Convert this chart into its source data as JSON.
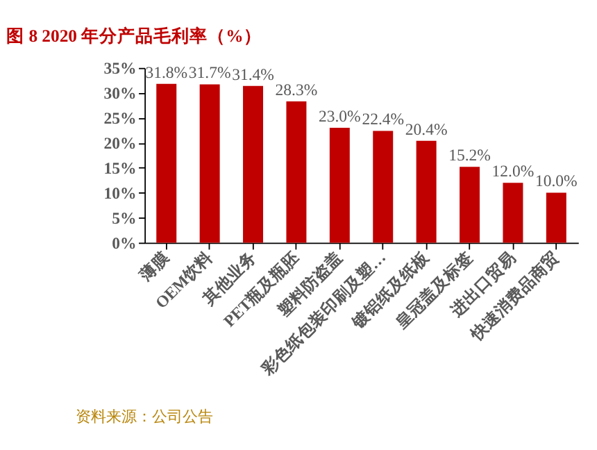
{
  "chart_data": {
    "type": "bar",
    "title": "图 8 2020 年分产品毛利率（%）",
    "categories": [
      "薄膜",
      "OEM饮料",
      "其他业务",
      "PET瓶及瓶胚",
      "塑料防盗盖",
      "彩色纸包装印刷及塑…",
      "镀铝纸及纸板",
      "皇冠盖及标签",
      "进出口贸易",
      "快速消费品商贸"
    ],
    "series": [
      {
        "color": "#c00000",
        "values": [
          31.8,
          31.7,
          31.4,
          28.3,
          23.0,
          22.4,
          20.4,
          15.2,
          12.0,
          10.0
        ],
        "value_labels": [
          "31.8%",
          "31.7%",
          "31.4%",
          "28.3%",
          "23.0%",
          "22.4%",
          "20.4%",
          "15.2%",
          "12.0%",
          "10.0%"
        ]
      }
    ],
    "ylim": [
      0,
      35
    ],
    "yticks": [
      {
        "value": 0,
        "label": "0%"
      },
      {
        "value": 5,
        "label": "5%"
      },
      {
        "value": 10,
        "label": "10%"
      },
      {
        "value": 15,
        "label": "15%"
      },
      {
        "value": 20,
        "label": "20%"
      },
      {
        "value": 25,
        "label": "25%"
      },
      {
        "value": 30,
        "label": "30%"
      },
      {
        "value": 35,
        "label": "35%"
      }
    ],
    "grid": false,
    "annotations": [
      "资料来源：公司公告"
    ]
  }
}
